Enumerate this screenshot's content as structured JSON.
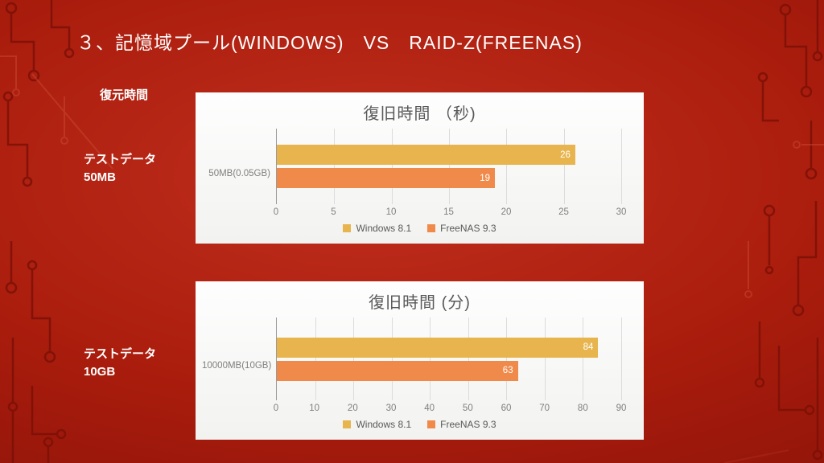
{
  "title": "３、記憶域プール(WINDOWS)　VS　RAID-Z(FREENAS)",
  "side_labels": {
    "top": "復元時間",
    "test1_line1": "テストデータ",
    "test1_line2": "50MB",
    "test2_line1": "テストデータ",
    "test2_line2": "10GB"
  },
  "colors": {
    "windows_series": "#e8b44d",
    "freenas_series": "#f08a4b",
    "chart_title_text": "#595959",
    "axis_text": "#7f7f7f",
    "background_red": "#a81d0d"
  },
  "chart_data": [
    {
      "type": "bar",
      "orientation": "horizontal",
      "title": "復旧時間 （秒)",
      "xlabel": "",
      "ylabel": "",
      "categories": [
        "50MB(0.05GB)"
      ],
      "series": [
        {
          "name": "Windows 8.1",
          "values": [
            26
          ],
          "color": "#e8b44d"
        },
        {
          "name": "FreeNAS 9.3",
          "values": [
            19
          ],
          "color": "#f08a4b"
        }
      ],
      "xlim": [
        0,
        30
      ],
      "xticks": [
        0,
        5,
        10,
        15,
        20,
        25,
        30
      ],
      "grid": true,
      "legend_position": "bottom"
    },
    {
      "type": "bar",
      "orientation": "horizontal",
      "title": "復旧時間 (分)",
      "xlabel": "",
      "ylabel": "",
      "categories": [
        "10000MB(10GB)"
      ],
      "series": [
        {
          "name": "Windows 8.1",
          "values": [
            84
          ],
          "color": "#e8b44d"
        },
        {
          "name": "FreeNAS 9.3",
          "values": [
            63
          ],
          "color": "#f08a4b"
        }
      ],
      "xlim": [
        0,
        90
      ],
      "xticks": [
        0,
        10,
        20,
        30,
        40,
        50,
        60,
        70,
        80,
        90
      ],
      "grid": true,
      "legend_position": "bottom"
    }
  ]
}
